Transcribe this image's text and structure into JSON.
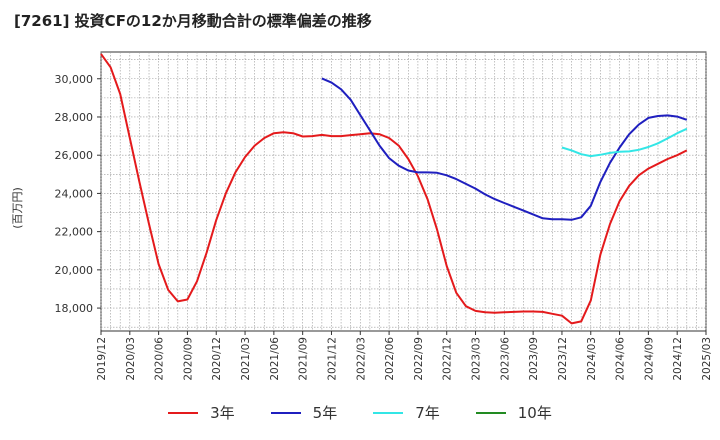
{
  "title": "[7261]  投資CFの12か月移動合計の標準偏差の推移",
  "ylabel": "(百万円)",
  "colors": {
    "3y": "#e41a1c",
    "5y": "#1f1fbf",
    "7y": "#33e6e6",
    "10y": "#228b22"
  },
  "chart_data": {
    "type": "line",
    "title": "[7261]  投資CFの12か月移動合計の標準偏差の推移",
    "ylabel": "(百万円)",
    "ylim": [
      16800,
      31400
    ],
    "yticks": [
      18000,
      20000,
      22000,
      24000,
      26000,
      28000,
      30000
    ],
    "ytick_labels": [
      "18,000",
      "20,000",
      "22,000",
      "24,000",
      "26,000",
      "28,000",
      "30,000"
    ],
    "xticks": [
      "2019/12",
      "2020/03",
      "2020/06",
      "2020/09",
      "2020/12",
      "2021/03",
      "2021/06",
      "2021/09",
      "2021/12",
      "2022/03",
      "2022/06",
      "2022/09",
      "2022/12",
      "2023/03",
      "2023/06",
      "2023/09",
      "2023/12",
      "2024/03",
      "2024/06",
      "2024/09",
      "2024/12",
      "2025/03"
    ],
    "grid": true,
    "legend_position": "bottom",
    "series": [
      {
        "name": "3年",
        "color": "#e41a1c",
        "points": [
          [
            "2019/12",
            31300
          ],
          [
            "2020/01",
            30600
          ],
          [
            "2020/02",
            29200
          ],
          [
            "2020/03",
            26900
          ],
          [
            "2020/04",
            24600
          ],
          [
            "2020/05",
            22400
          ],
          [
            "2020/06",
            20300
          ],
          [
            "2020/07",
            18950
          ],
          [
            "2020/08",
            18350
          ],
          [
            "2020/09",
            18450
          ],
          [
            "2020/10",
            19400
          ],
          [
            "2020/11",
            20900
          ],
          [
            "2020/12",
            22600
          ],
          [
            "2021/01",
            24000
          ],
          [
            "2021/02",
            25100
          ],
          [
            "2021/03",
            25900
          ],
          [
            "2021/04",
            26500
          ],
          [
            "2021/05",
            26900
          ],
          [
            "2021/06",
            27150
          ],
          [
            "2021/07",
            27200
          ],
          [
            "2021/08",
            27150
          ],
          [
            "2021/09",
            26980
          ],
          [
            "2021/10",
            27000
          ],
          [
            "2021/11",
            27060
          ],
          [
            "2021/12",
            27000
          ],
          [
            "2022/01",
            27000
          ],
          [
            "2022/02",
            27050
          ],
          [
            "2022/03",
            27100
          ],
          [
            "2022/04",
            27150
          ],
          [
            "2022/05",
            27100
          ],
          [
            "2022/06",
            26900
          ],
          [
            "2022/07",
            26500
          ],
          [
            "2022/08",
            25800
          ],
          [
            "2022/09",
            24900
          ],
          [
            "2022/10",
            23700
          ],
          [
            "2022/11",
            22100
          ],
          [
            "2022/12",
            20200
          ],
          [
            "2023/01",
            18800
          ],
          [
            "2023/02",
            18100
          ],
          [
            "2023/03",
            17850
          ],
          [
            "2023/04",
            17780
          ],
          [
            "2023/05",
            17760
          ],
          [
            "2023/06",
            17780
          ],
          [
            "2023/07",
            17800
          ],
          [
            "2023/08",
            17820
          ],
          [
            "2023/09",
            17820
          ],
          [
            "2023/10",
            17800
          ],
          [
            "2023/11",
            17700
          ],
          [
            "2023/12",
            17600
          ],
          [
            "2024/01",
            17200
          ],
          [
            "2024/02",
            17300
          ],
          [
            "2024/03",
            18400
          ],
          [
            "2024/04",
            20800
          ],
          [
            "2024/05",
            22400
          ],
          [
            "2024/06",
            23600
          ],
          [
            "2024/07",
            24400
          ],
          [
            "2024/08",
            24950
          ],
          [
            "2024/09",
            25300
          ],
          [
            "2024/10",
            25550
          ],
          [
            "2024/11",
            25800
          ],
          [
            "2024/12",
            26000
          ],
          [
            "2025/01",
            26250
          ]
        ]
      },
      {
        "name": "5年",
        "color": "#1f1fbf",
        "points": [
          [
            "2021/11",
            30020
          ],
          [
            "2021/12",
            29800
          ],
          [
            "2022/01",
            29450
          ],
          [
            "2022/02",
            28900
          ],
          [
            "2022/03",
            28100
          ],
          [
            "2022/04",
            27300
          ],
          [
            "2022/05",
            26500
          ],
          [
            "2022/06",
            25850
          ],
          [
            "2022/07",
            25450
          ],
          [
            "2022/08",
            25200
          ],
          [
            "2022/09",
            25100
          ],
          [
            "2022/10",
            25100
          ],
          [
            "2022/11",
            25080
          ],
          [
            "2022/12",
            24950
          ],
          [
            "2023/01",
            24750
          ],
          [
            "2023/02",
            24500
          ],
          [
            "2023/03",
            24250
          ],
          [
            "2023/04",
            23950
          ],
          [
            "2023/05",
            23700
          ],
          [
            "2023/06",
            23500
          ],
          [
            "2023/07",
            23300
          ],
          [
            "2023/08",
            23100
          ],
          [
            "2023/09",
            22900
          ],
          [
            "2023/10",
            22700
          ],
          [
            "2023/11",
            22650
          ],
          [
            "2023/12",
            22650
          ],
          [
            "2024/01",
            22620
          ],
          [
            "2024/02",
            22750
          ],
          [
            "2024/03",
            23350
          ],
          [
            "2024/04",
            24600
          ],
          [
            "2024/05",
            25600
          ],
          [
            "2024/06",
            26400
          ],
          [
            "2024/07",
            27100
          ],
          [
            "2024/08",
            27600
          ],
          [
            "2024/09",
            27950
          ],
          [
            "2024/10",
            28050
          ],
          [
            "2024/11",
            28080
          ],
          [
            "2024/12",
            28020
          ],
          [
            "2025/01",
            27850
          ]
        ]
      },
      {
        "name": "7年",
        "color": "#33e6e6",
        "points": [
          [
            "2023/12",
            26400
          ],
          [
            "2024/01",
            26250
          ],
          [
            "2024/02",
            26050
          ],
          [
            "2024/03",
            25950
          ],
          [
            "2024/04",
            26020
          ],
          [
            "2024/05",
            26120
          ],
          [
            "2024/06",
            26180
          ],
          [
            "2024/07",
            26200
          ],
          [
            "2024/08",
            26280
          ],
          [
            "2024/09",
            26430
          ],
          [
            "2024/10",
            26620
          ],
          [
            "2024/11",
            26880
          ],
          [
            "2024/12",
            27150
          ],
          [
            "2025/01",
            27380
          ]
        ]
      },
      {
        "name": "10年",
        "color": "#228b22",
        "points": []
      }
    ]
  }
}
